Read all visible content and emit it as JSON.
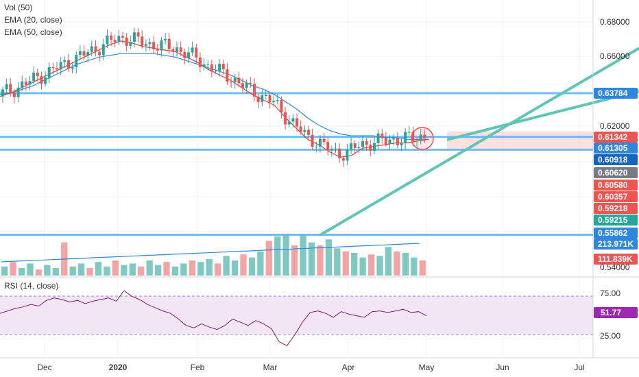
{
  "legend": {
    "vol": "Vol (50)",
    "ema20": "EMA (20, close)",
    "ema50": "EMA (50, close)",
    "rsi": "RSI (14, close)"
  },
  "colors": {
    "up": "#26a69a",
    "down": "#ef5350",
    "up_vol": "#7ecac2",
    "down_vol": "#f4a4a2",
    "ema20": "#e53935",
    "ema50": "#2e86de",
    "hline": "#64b5f6",
    "trend": "#5fc6b3",
    "rsi": "#7b1f6a",
    "rsi_band": "#f3e5f5"
  },
  "chart_data": {
    "type": "candlestick",
    "y_range": [
      0.535,
      0.69
    ],
    "price_ticks": [
      "0.68000",
      "0.66000",
      "0.62000",
      "0.54000"
    ],
    "price_badges": [
      {
        "value": "0.63784",
        "color": "#2e86de"
      },
      {
        "value": "0.61342",
        "color": "#ef5350"
      },
      {
        "value": "0.61305",
        "color": "#2e86de"
      },
      {
        "value": "0.60918",
        "color": "#1565c0"
      },
      {
        "value": "0.60620",
        "color": "#787b86"
      },
      {
        "value": "0.60580",
        "color": "#ef5350"
      },
      {
        "value": "0.60357",
        "color": "#ef5350"
      },
      {
        "value": "0.59218",
        "color": "#ef5350"
      },
      {
        "value": "0.59215",
        "color": "#26a69a"
      },
      {
        "value": "0.55862",
        "color": "#2e86de"
      },
      {
        "value": "213.971K",
        "color": "#2e86de"
      },
      {
        "value": "111.839K",
        "color": "#ef5350"
      }
    ],
    "x_ticks": [
      "Dec",
      "2020",
      "Feb",
      "Mar",
      "Apr",
      "May",
      "Jun",
      "Jul"
    ],
    "horizontal_levels": [
      0.6378,
      0.6134,
      0.6062,
      0.5586
    ],
    "ema20": [
      0.636,
      0.638,
      0.641,
      0.644,
      0.647,
      0.65,
      0.653,
      0.656,
      0.659,
      0.662,
      0.665,
      0.667,
      0.666,
      0.664,
      0.663,
      0.662,
      0.661,
      0.658,
      0.655,
      0.651,
      0.648,
      0.645,
      0.641,
      0.637,
      0.634,
      0.631,
      0.624,
      0.618,
      0.612,
      0.609,
      0.605,
      0.602,
      0.603,
      0.607,
      0.608,
      0.609,
      0.61,
      0.61,
      0.611,
      0.612
    ],
    "ema50": [
      0.637,
      0.638,
      0.64,
      0.642,
      0.645,
      0.648,
      0.651,
      0.654,
      0.656,
      0.658,
      0.659,
      0.66,
      0.66,
      0.66,
      0.66,
      0.659,
      0.658,
      0.656,
      0.654,
      0.652,
      0.65,
      0.648,
      0.645,
      0.642,
      0.64,
      0.637,
      0.633,
      0.629,
      0.624,
      0.62,
      0.617,
      0.615,
      0.614,
      0.614,
      0.614,
      0.613,
      0.613,
      0.612,
      0.612,
      0.612
    ],
    "rsi": {
      "range": [
        0,
        100
      ],
      "ticks": [
        "75.00",
        "25.00"
      ],
      "current": "51.77",
      "values": [
        55,
        58,
        61,
        63,
        66,
        64,
        71,
        74,
        72,
        69,
        71,
        67,
        70,
        72,
        74,
        70,
        83,
        76,
        72,
        66,
        62,
        58,
        55,
        48,
        40,
        37,
        42,
        38,
        35,
        40,
        48,
        44,
        40,
        46,
        42,
        36,
        20,
        15,
        28,
        44,
        56,
        58,
        55,
        50,
        57,
        54,
        52,
        50,
        57,
        58,
        56,
        58,
        60,
        56,
        57,
        52
      ]
    },
    "volume": {
      "values": [
        0.6,
        0.9,
        0.5,
        0.8,
        0.4,
        0.7,
        0.5,
        2.2,
        0.6,
        0.8,
        0.5,
        0.9,
        0.6,
        1.0,
        0.7,
        0.8,
        0.6,
        1.0,
        0.7,
        0.9,
        0.6,
        0.8,
        1.0,
        0.9,
        1.1,
        0.8,
        1.3,
        1.0,
        1.4,
        1.2,
        1.6,
        2.3,
        2.6,
        3.0,
        2.0,
        2.9,
        2.2,
        2.0,
        2.4,
        1.8,
        1.6,
        1.5,
        1.2,
        1.4,
        1.3,
        1.9,
        1.6,
        1.5,
        1.2,
        1.0
      ]
    },
    "rising_wedge_lines": [
      {
        "from": [
          0.33,
          0.5586
        ],
        "to": [
          1.0,
          0.663
        ]
      },
      {
        "from": [
          0.53,
          0.612
        ],
        "to": [
          1.0,
          0.639
        ]
      }
    ],
    "position": {
      "entry": 0.6134,
      "stop": 0.6165,
      "target": 0.6062
    }
  }
}
